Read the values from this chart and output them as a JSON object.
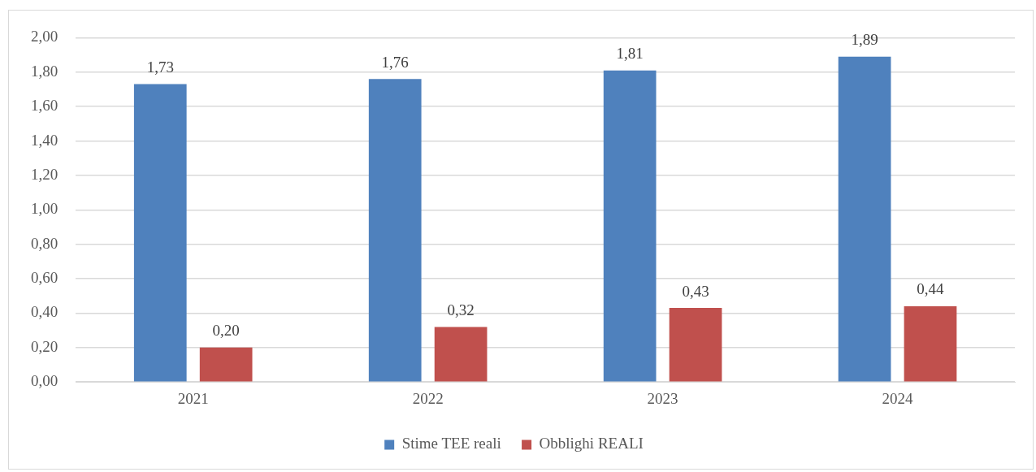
{
  "chart_data": {
    "type": "bar",
    "categories": [
      "2021",
      "2022",
      "2023",
      "2024"
    ],
    "series": [
      {
        "name": "Stime TEE reali",
        "color": "#4f81bd",
        "values": [
          1.73,
          1.76,
          1.81,
          1.89
        ],
        "value_labels": [
          "1,73",
          "1,76",
          "1,81",
          "1,89"
        ]
      },
      {
        "name": "Obblighi REALI",
        "color": "#c0504d",
        "values": [
          0.2,
          0.32,
          0.43,
          0.44
        ],
        "value_labels": [
          "0,20",
          "0,32",
          "0,43",
          "0,44"
        ]
      }
    ],
    "ylim": [
      0,
      2
    ],
    "yticks": [
      {
        "value": 0,
        "label": "0,00"
      },
      {
        "value": 0.2,
        "label": "0,20"
      },
      {
        "value": 0.4,
        "label": "0,40"
      },
      {
        "value": 0.6,
        "label": "0,60"
      },
      {
        "value": 0.8,
        "label": "0,80"
      },
      {
        "value": 1,
        "label": "1,00"
      },
      {
        "value": 1.2,
        "label": "1,20"
      },
      {
        "value": 1.4,
        "label": "1,40"
      },
      {
        "value": 1.6,
        "label": "1,60"
      },
      {
        "value": 1.8,
        "label": "1,80"
      },
      {
        "value": 2,
        "label": "2,00"
      }
    ],
    "grid": "y",
    "legend": "bottom"
  }
}
